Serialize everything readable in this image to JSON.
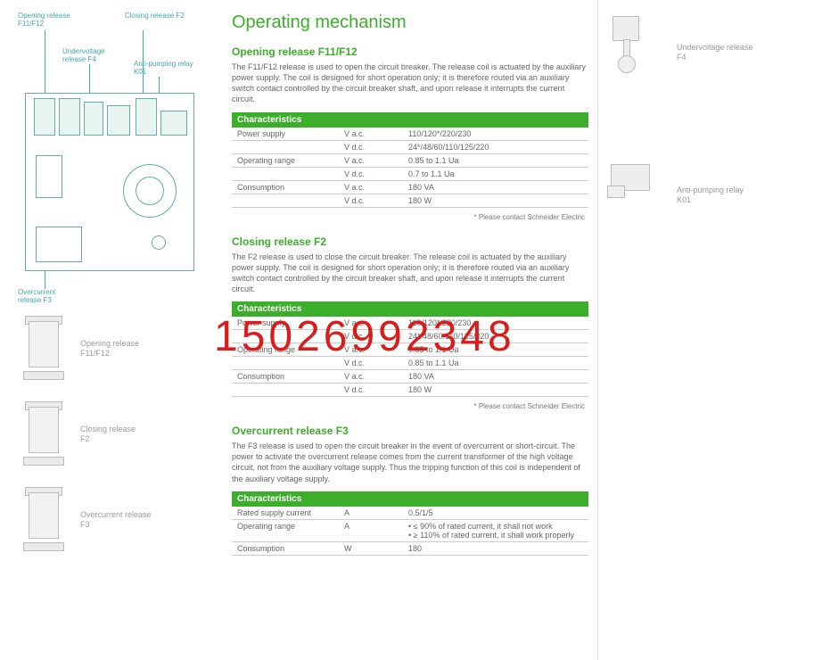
{
  "colors": {
    "accent": "#3dae2b",
    "diagram_line": "#6aa",
    "thumb_line": "#bbb",
    "watermark": "#d91c1c"
  },
  "watermark": "15026992348",
  "main_title": "Operating mechanism",
  "diagram_labels": {
    "l1": "Opening release\nF11/F12",
    "l2": "Closing release\nF2",
    "l3": "Undervoltage\nrelease F4",
    "l4": "Anti-pumping\nrelay K01",
    "l5": "Overcurrent\nrelease F3"
  },
  "left_thumbs": [
    {
      "label": "Opening release\nF11/F12"
    },
    {
      "label": "Closing release\nF2"
    },
    {
      "label": "Overcurrent release\nF3"
    }
  ],
  "right_thumbs": [
    {
      "label": "Undervoltage release\nF4"
    },
    {
      "label": "Anti-pumping relay\nK01"
    }
  ],
  "sections": [
    {
      "title": "Opening release F11/F12",
      "desc": "The F11/F12 release is used to open the circuit breaker. The release coil is actuated by the auxiliary power supply.\nThe coil is designed for short operation only; it is therefore routed via an auxiliary switch contact controlled by the circuit breaker shaft, and upon release it interrupts the current circuit.",
      "table_header": "Characteristics",
      "rows": [
        [
          "Power supply",
          "V a.c.",
          "110/120*/220/230"
        ],
        [
          "",
          "V d.c.",
          "24*/48/60/110/125/220"
        ],
        [
          "Operating range",
          "V a.c.",
          "0.85 to 1.1 Ua"
        ],
        [
          "",
          "V d.c.",
          "0.7 to 1.1 Ua"
        ],
        [
          "Consumption",
          "V a.c.",
          "180 VA"
        ],
        [
          "",
          "V d.c.",
          "180 W"
        ]
      ],
      "footnote": "* Please contact Schneider Electric"
    },
    {
      "title": "Closing release F2",
      "desc": "The F2 release is used to close the circuit breaker. The release coil is actuated by the auxiliary power supply.\nThe coil is designed for short operation only; it is therefore routed via an auxiliary switch contact controlled by the circuit breaker shaft, and upon release it interrupts the current circuit.",
      "table_header": "Characteristics",
      "rows": [
        [
          "Power supply",
          "V a.c.",
          "110/120*/220/230"
        ],
        [
          "",
          "V d.c.",
          "24*/48/60/110/125/220"
        ],
        [
          "Operating range",
          "V a.c.",
          "0.85 to 1.1 Ua"
        ],
        [
          "",
          "V d.c.",
          "0.85 to 1.1 Ua"
        ],
        [
          "Consumption",
          "V a.c.",
          "180 VA"
        ],
        [
          "",
          "V d.c.",
          "180 W"
        ]
      ],
      "footnote": "* Please contact Schneider Electric"
    },
    {
      "title": "Overcurrent release F3",
      "desc": "The F3 release is used to open the circuit breaker in the event of overcurrent or short-circuit.\nThe power to activate the overcurrent release comes from the current transformer of the high voltage circuit, not from the auxiliary voltage supply. Thus the tripping function of this coil is independent of the auxiliary voltage supply.",
      "table_header": "Characteristics",
      "rows": [
        [
          "Rated supply current",
          "A",
          "0.5/1/5"
        ],
        [
          "Operating range",
          "A",
          "• ≤ 90% of rated current, it shall not work\n• ≥ 110% of rated current, it shall work properly"
        ],
        [
          "Consumption",
          "W",
          "180"
        ]
      ],
      "footnote": ""
    }
  ]
}
